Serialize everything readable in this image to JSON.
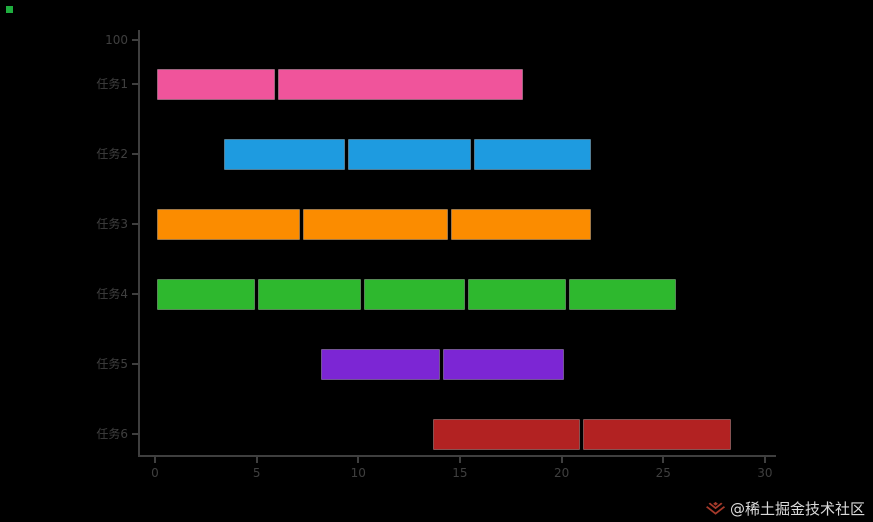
{
  "page": {
    "background": "#000000"
  },
  "watermark": {
    "text": "@稀土掘金技术社区",
    "icon_color": "#a63a2b"
  },
  "chart_data": {
    "type": "bar",
    "subtype": "gantt-broken-barh",
    "title": "",
    "xlabel": "",
    "ylabel": "",
    "xlim": [
      0,
      30.5
    ],
    "x_ticks": [
      0,
      5,
      10,
      15,
      20,
      25,
      30
    ],
    "x_tick_labels": [
      "0",
      "5",
      "10",
      "15",
      "20",
      "25",
      "30"
    ],
    "y_top_tick_label": "100",
    "grid": false,
    "legend": false,
    "axis_color": "#3f3f3f",
    "tick_label_color": "#3f3f3f",
    "rows": [
      {
        "label": "任务1",
        "color": "#f0549b",
        "segments": [
          [
            0,
            6
          ],
          [
            6,
            18.2
          ]
        ]
      },
      {
        "label": "任务2",
        "color": "#1e9be0",
        "segments": [
          [
            3.3,
            9.4
          ],
          [
            9.4,
            15.6
          ],
          [
            15.6,
            21.5
          ]
        ]
      },
      {
        "label": "任务3",
        "color": "#fb8c00",
        "segments": [
          [
            0,
            7.2
          ],
          [
            7.2,
            14.5
          ],
          [
            14.5,
            21.5
          ]
        ]
      },
      {
        "label": "任务4",
        "color": "#2eb82e",
        "segments": [
          [
            0,
            5
          ],
          [
            5,
            10.2
          ],
          [
            10.2,
            15.3
          ],
          [
            15.3,
            20.3
          ],
          [
            20.3,
            25.7
          ]
        ]
      },
      {
        "label": "任务5",
        "color": "#7c26d4",
        "segments": [
          [
            8.1,
            14.1
          ],
          [
            14.1,
            20.2
          ]
        ]
      },
      {
        "label": "任务6",
        "color": "#b22222",
        "segments": [
          [
            13.6,
            21
          ],
          [
            21,
            28.4
          ]
        ]
      }
    ]
  }
}
